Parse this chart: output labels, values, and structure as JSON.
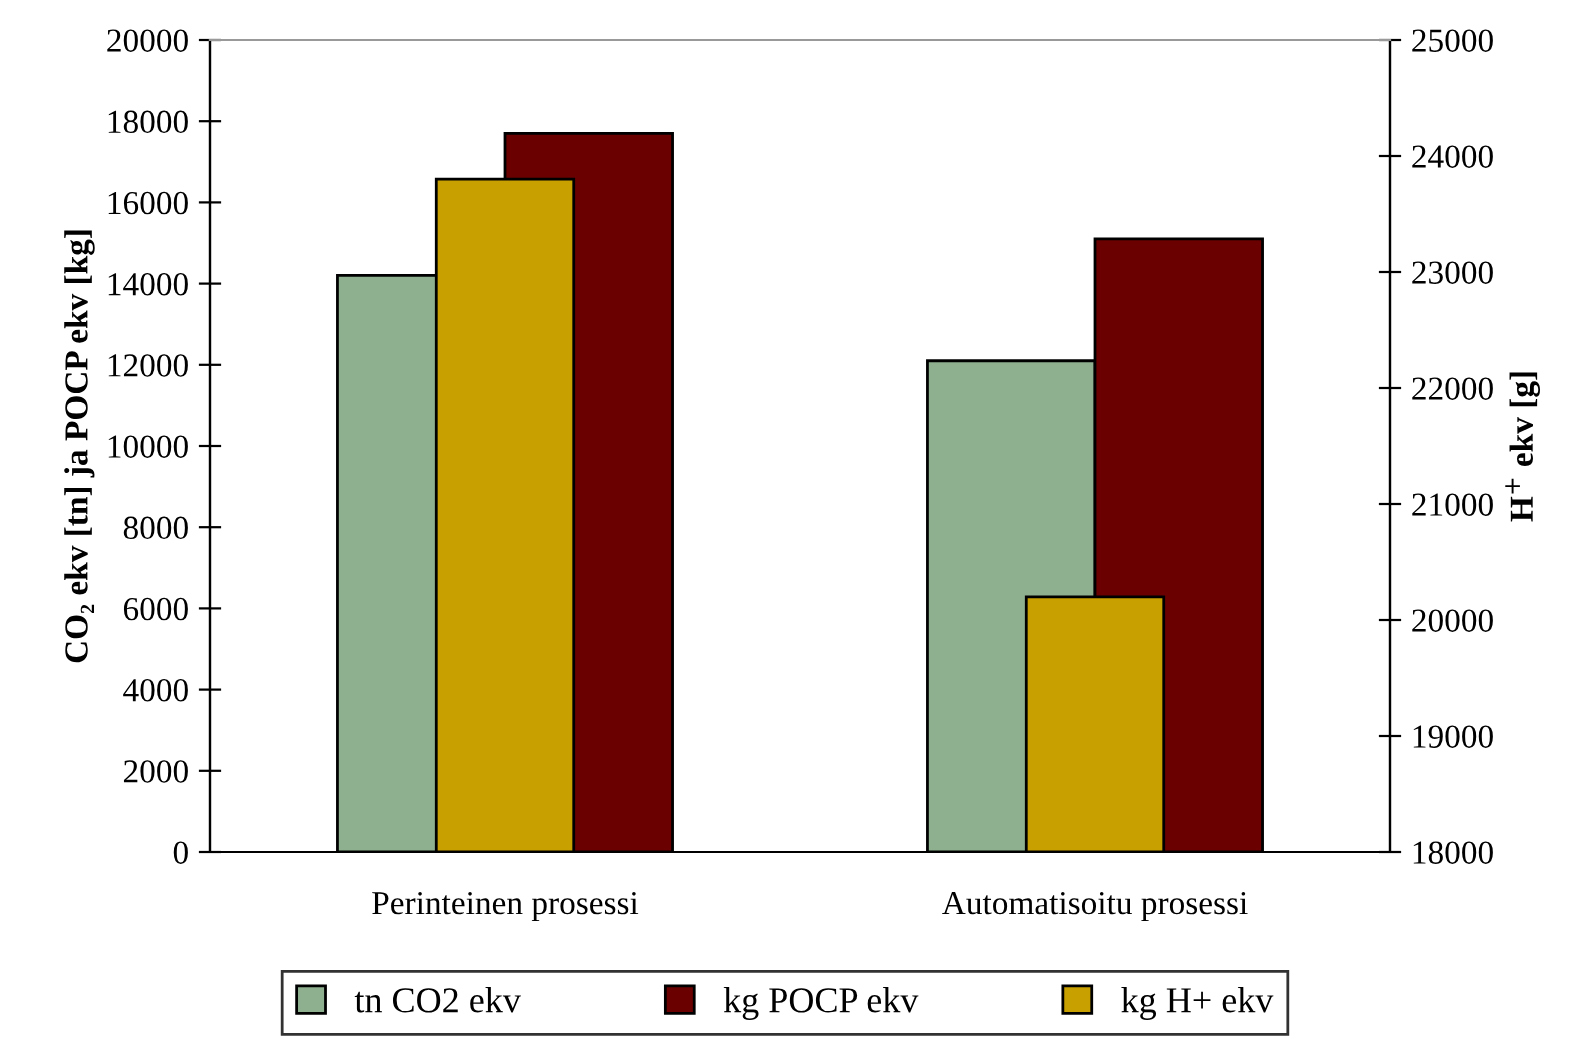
{
  "chart_data": {
    "type": "bar",
    "categories": [
      "Perinteinen prosessi",
      "Automatisoitu prosessi"
    ],
    "ylabel": "CO₂ ekv [tn] ja POCP ekv [kg]",
    "y2label": "H$^{+}$ ekv [g]",
    "series": [
      {
        "name": "tn CO2 ekv",
        "color": "#8fb08f",
        "values": [
          14200,
          12100
        ]
      },
      {
        "name": "kg POCP ekv",
        "color": "#6a0000",
        "values": [
          17700,
          15100
        ]
      },
      {
        "name": "kg H+ ekv",
        "color": "#c8a000",
        "values": [
          23800,
          20200
        ],
        "axis": "y2"
      }
    ],
    "ylim": [
      0,
      20000
    ],
    "yticks": [
      0,
      2000,
      4000,
      6000,
      8000,
      10000,
      12000,
      14000,
      16000,
      18000,
      20000
    ],
    "y2lim": [
      18000,
      25000
    ],
    "y2ticks": [
      18000,
      19000,
      20000,
      21000,
      22000,
      23000,
      24000,
      25000
    ],
    "grid": false,
    "legend": "bottom"
  }
}
